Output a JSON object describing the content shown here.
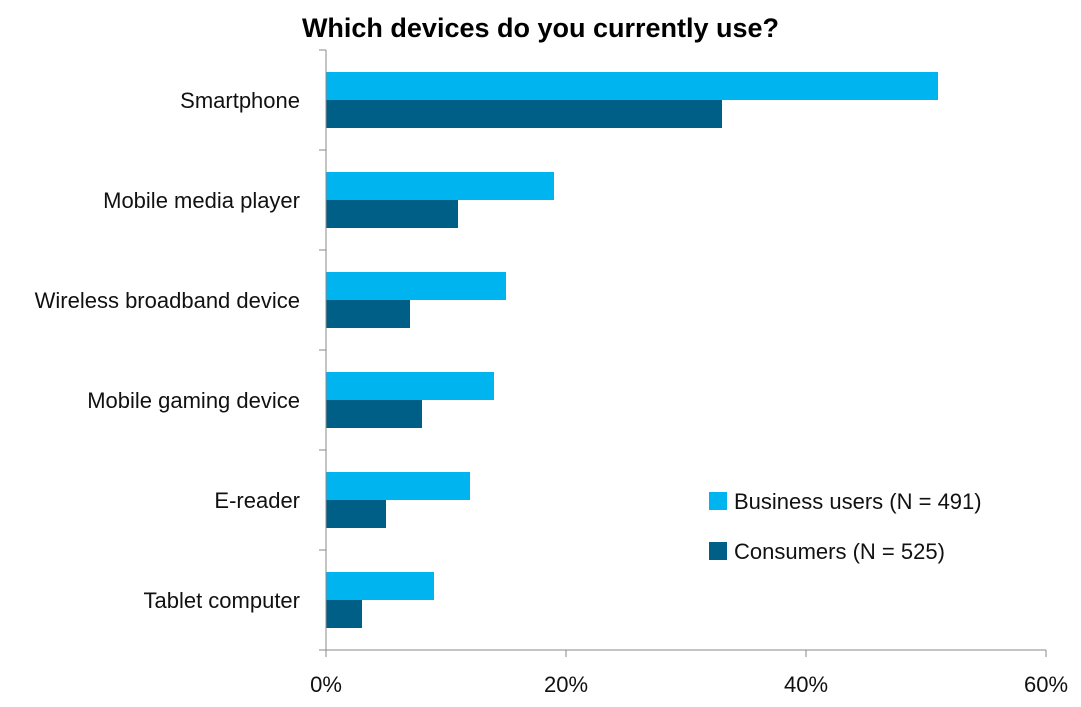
{
  "chart_data": {
    "type": "bar",
    "orientation": "horizontal",
    "title": "Which devices do you currently use?",
    "categories": [
      "Smartphone",
      "Mobile media player",
      "Wireless broadband device",
      "Mobile gaming device",
      "E-reader",
      "Tablet computer"
    ],
    "series": [
      {
        "name": "Business users (N = 491)",
        "color": "#00b4f0",
        "values": [
          51,
          19,
          15,
          14,
          12,
          9
        ]
      },
      {
        "name": "Consumers (N = 525)",
        "color": "#005f87",
        "values": [
          33,
          11,
          7,
          8,
          5,
          3
        ]
      }
    ],
    "xlim": [
      0,
      60
    ],
    "x_ticks": [
      {
        "value": 0,
        "label": "0%"
      },
      {
        "value": 20,
        "label": "20%"
      },
      {
        "value": 40,
        "label": "40%"
      },
      {
        "value": 60,
        "label": "60%"
      }
    ],
    "grid": false,
    "legend_position": "lower-right"
  }
}
